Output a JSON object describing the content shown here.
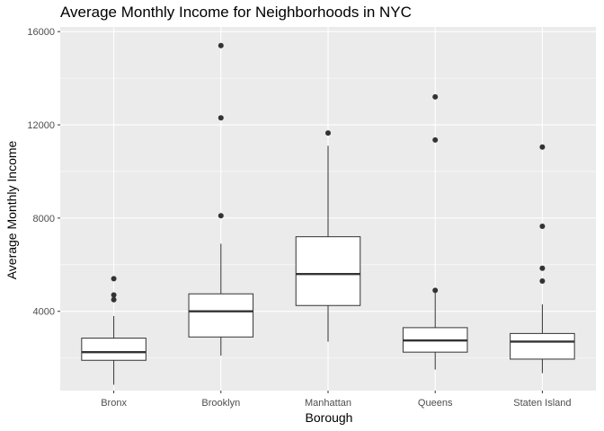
{
  "chart_data": {
    "type": "box",
    "title": "Average Monthly Income for Neighborhoods in NYC",
    "xlabel": "Borough",
    "ylabel": "Average Monthly Income",
    "ylim": [
      600,
      16200
    ],
    "yticks": [
      4000,
      8000,
      12000,
      16000
    ],
    "grid": true,
    "categories": [
      "Bronx",
      "Brooklyn",
      "Manhattan",
      "Queens",
      "Staten Island"
    ],
    "boxes": [
      {
        "category": "Bronx",
        "whisker_low": 850,
        "q1": 1900,
        "median": 2250,
        "q3": 2850,
        "whisker_high": 3800,
        "outliers": [
          4500,
          4700,
          5400
        ]
      },
      {
        "category": "Brooklyn",
        "whisker_low": 2100,
        "q1": 2900,
        "median": 4000,
        "q3": 4750,
        "whisker_high": 6900,
        "outliers": [
          8100,
          12300,
          15400
        ]
      },
      {
        "category": "Manhattan",
        "whisker_low": 2700,
        "q1": 4250,
        "median": 5600,
        "q3": 7200,
        "whisker_high": 11100,
        "outliers": [
          11650
        ]
      },
      {
        "category": "Queens",
        "whisker_low": 1500,
        "q1": 2250,
        "median": 2750,
        "q3": 3300,
        "whisker_high": 4800,
        "outliers": [
          4900,
          11350,
          13200
        ]
      },
      {
        "category": "Staten Island",
        "whisker_low": 1350,
        "q1": 1950,
        "median": 2700,
        "q3": 3050,
        "whisker_high": 4300,
        "outliers": [
          5300,
          5850,
          7650,
          11050
        ]
      }
    ]
  }
}
